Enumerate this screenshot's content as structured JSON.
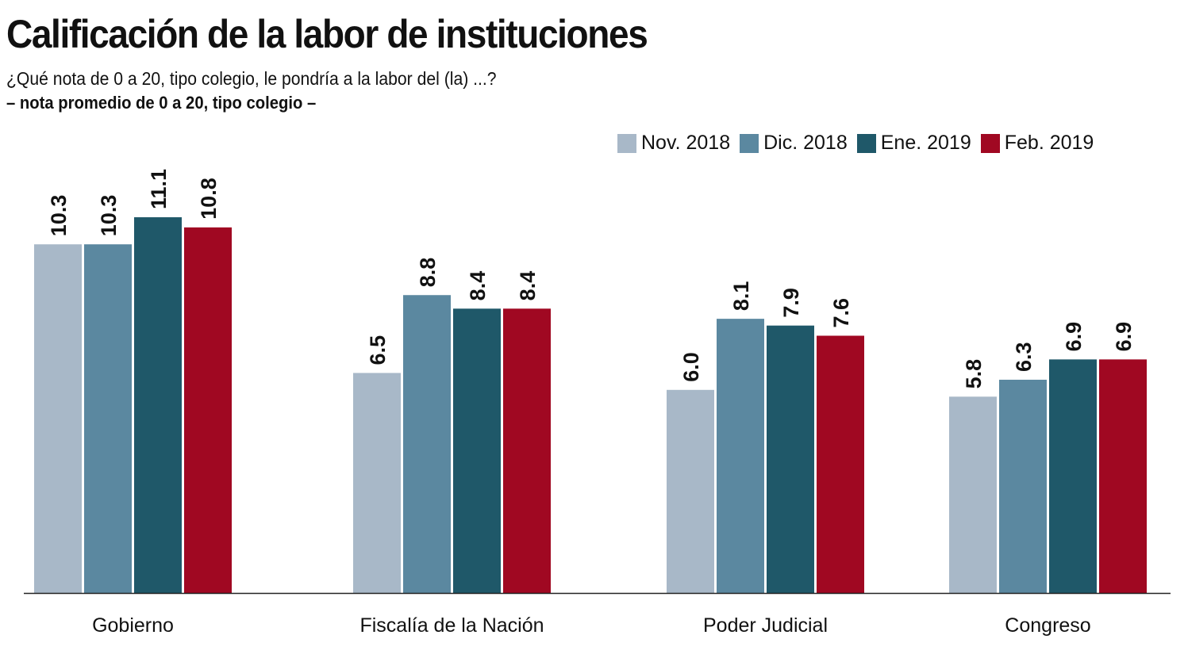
{
  "chart_data": {
    "type": "bar",
    "title": "Calificación de la labor de instituciones",
    "subtitle": "¿Qué nota de 0 a 20, tipo colegio, le pondría a la labor del (la) ...?",
    "subtitle2": "– nota promedio de 0 a 20, tipo colegio –",
    "categories": [
      "Gobierno",
      "Fiscalía de la Nación",
      "Poder Judicial",
      "Congreso"
    ],
    "series": [
      {
        "name": "Nov. 2018",
        "color": "#a8b8c8",
        "values": [
          10.3,
          6.5,
          6.0,
          5.8
        ]
      },
      {
        "name": "Dic. 2018",
        "color": "#5b88a0",
        "values": [
          10.3,
          8.8,
          8.1,
          6.3
        ]
      },
      {
        "name": "Ene. 2019",
        "color": "#1f5869",
        "values": [
          11.1,
          8.4,
          7.9,
          6.9
        ]
      },
      {
        "name": "Feb. 2019",
        "color": "#a00822",
        "values": [
          10.8,
          8.4,
          7.6,
          6.9
        ]
      }
    ],
    "ylim": [
      0,
      12
    ],
    "grid": false,
    "legend": "top-right",
    "data_labels": true
  }
}
